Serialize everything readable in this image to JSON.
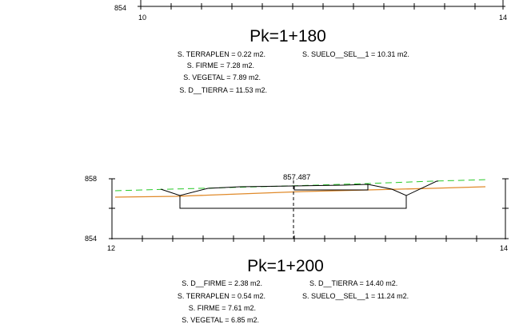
{
  "sections": [
    {
      "pk": "Pk=1+180",
      "axis": {
        "bottom_elev": "854",
        "x_start": "10",
        "x_end": "14"
      },
      "areas_left": [
        "S. TERRAPLEN =    0.22 m2.",
        "S. FIRME =    7.28 m2.",
        "S. VEGETAL =    7.89 m2.",
        "S. D__TIERRA =    11.53 m2."
      ],
      "areas_right": [
        "S. SUELO__SEL__1 =    10.31 m2."
      ]
    },
    {
      "pk": "Pk=1+200",
      "axis": {
        "top_elev": "858",
        "bottom_elev": "854",
        "x_start": "12",
        "x_end": "14"
      },
      "axis_elevation": "857.487",
      "areas_left": [
        "S. D__FIRME =    2.38 m2.",
        "S. TERRAPLEN =    0.54 m2.",
        "S. FIRME =    7.61 m2.",
        "S. VEGETAL =    6.85 m2."
      ],
      "areas_right": [
        "S. D__TIERRA =    14.40 m2.",
        "S. SUELO__SEL__1 =    11.24 m2."
      ]
    }
  ],
  "colors": {
    "terrain": "#e08a2a",
    "design": "#27c927",
    "line": "#000000"
  }
}
